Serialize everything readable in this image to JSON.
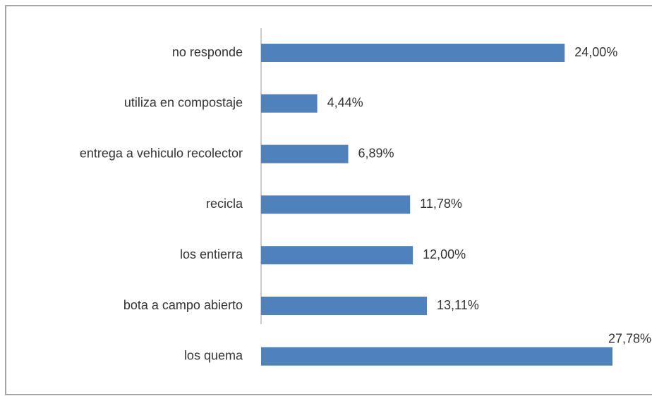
{
  "chart_data": {
    "type": "bar",
    "orientation": "horizontal",
    "categories": [
      "no responde",
      "utiliza en compostaje",
      "entrega a vehiculo recolector",
      "recicla",
      "los entierra",
      "bota a campo abierto",
      "los quema"
    ],
    "values": [
      24.0,
      4.44,
      6.89,
      11.78,
      12.0,
      13.11,
      27.78
    ],
    "value_labels": [
      "24,00%",
      "4,44%",
      "6,89%",
      "11,78%",
      "12,00%",
      "13,11%",
      "27,78%"
    ],
    "color": "#4f81bd"
  }
}
